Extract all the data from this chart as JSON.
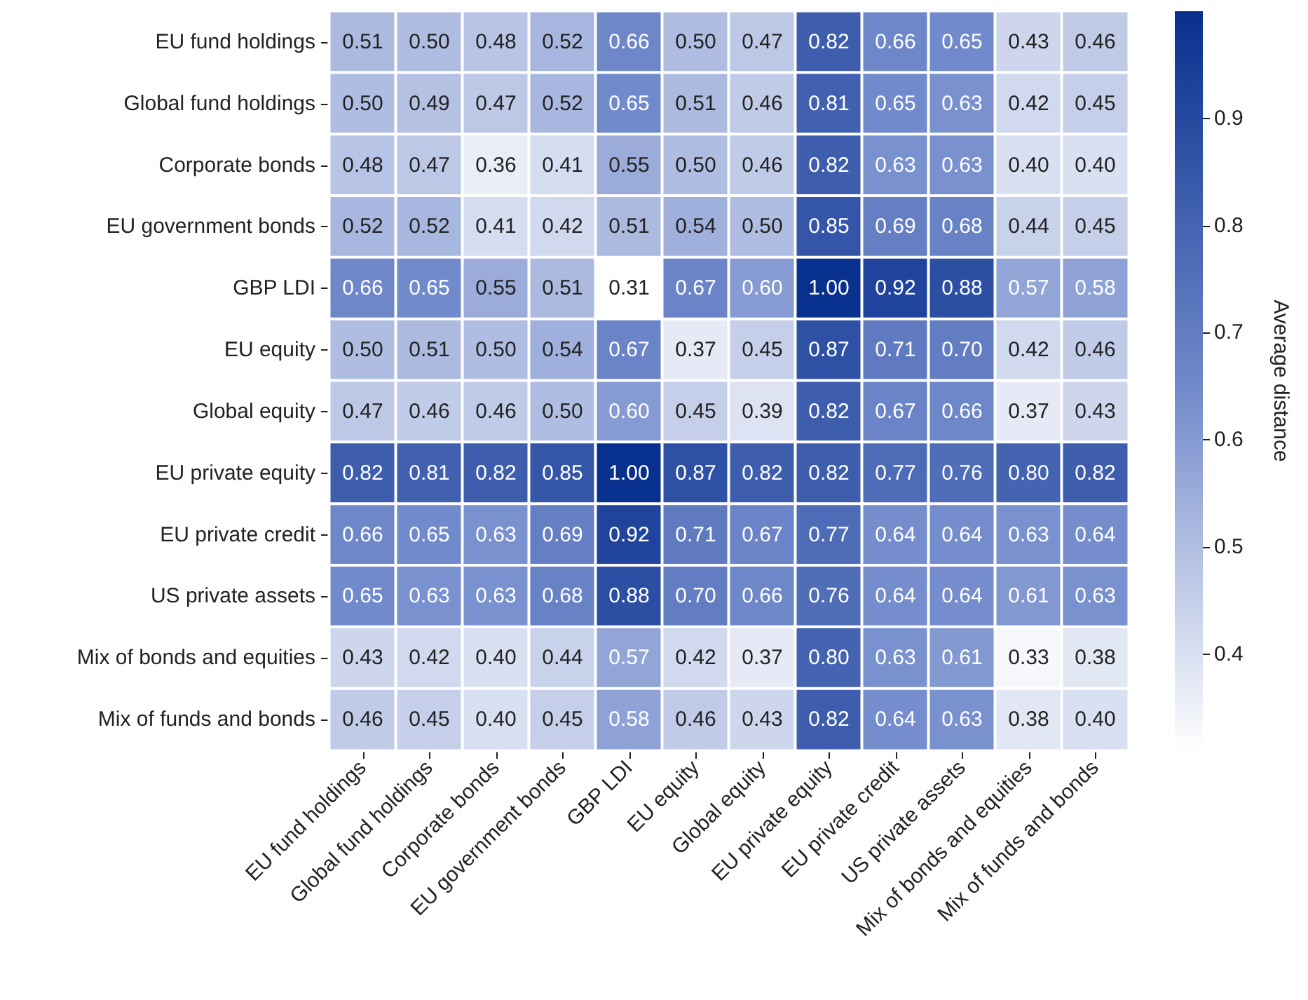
{
  "chart_data": {
    "type": "heatmap",
    "categories": [
      "EU fund holdings",
      "Global fund holdings",
      "Corporate bonds",
      "EU government bonds",
      "GBP LDI",
      "EU equity",
      "Global equity",
      "EU private equity",
      "EU private credit",
      "US private assets",
      "Mix of bonds and equities",
      "Mix of funds and bonds"
    ],
    "y_categories": [
      "EU fund holdings",
      "Global fund holdings",
      "Corporate bonds",
      "EU government bonds",
      "GBP LDI",
      "EU equity",
      "Global equity",
      "EU private equity",
      "EU private credit",
      "US private assets",
      "Mix of bonds and equities",
      "Mix of funds and bonds"
    ],
    "cells": [
      [
        0.51,
        0.5,
        0.48,
        0.52,
        0.66,
        0.5,
        0.47,
        0.82,
        0.66,
        0.65,
        0.43,
        0.46
      ],
      [
        0.5,
        0.49,
        0.47,
        0.52,
        0.65,
        0.51,
        0.46,
        0.81,
        0.65,
        0.63,
        0.42,
        0.45
      ],
      [
        0.48,
        0.47,
        0.36,
        0.41,
        0.55,
        0.5,
        0.46,
        0.82,
        0.63,
        0.63,
        0.4,
        0.4
      ],
      [
        0.52,
        0.52,
        0.41,
        0.42,
        0.51,
        0.54,
        0.5,
        0.85,
        0.69,
        0.68,
        0.44,
        0.45
      ],
      [
        0.66,
        0.65,
        0.55,
        0.51,
        0.31,
        0.67,
        0.6,
        1.0,
        0.92,
        0.88,
        0.57,
        0.58
      ],
      [
        0.5,
        0.51,
        0.5,
        0.54,
        0.67,
        0.37,
        0.45,
        0.87,
        0.71,
        0.7,
        0.42,
        0.46
      ],
      [
        0.47,
        0.46,
        0.46,
        0.5,
        0.6,
        0.45,
        0.39,
        0.82,
        0.67,
        0.66,
        0.37,
        0.43
      ],
      [
        0.82,
        0.81,
        0.82,
        0.85,
        1.0,
        0.87,
        0.82,
        0.82,
        0.77,
        0.76,
        0.8,
        0.82
      ],
      [
        0.66,
        0.65,
        0.63,
        0.69,
        0.92,
        0.71,
        0.67,
        0.77,
        0.64,
        0.64,
        0.63,
        0.64
      ],
      [
        0.65,
        0.63,
        0.63,
        0.68,
        0.88,
        0.7,
        0.66,
        0.76,
        0.64,
        0.64,
        0.61,
        0.63
      ],
      [
        0.43,
        0.42,
        0.4,
        0.44,
        0.57,
        0.42,
        0.37,
        0.8,
        0.63,
        0.61,
        0.33,
        0.38
      ],
      [
        0.46,
        0.45,
        0.4,
        0.45,
        0.58,
        0.46,
        0.43,
        0.82,
        0.64,
        0.63,
        0.38,
        0.4
      ]
    ],
    "cell_labels": [
      [
        "0.51",
        "0.50",
        "0.48",
        "0.52",
        "0.66",
        "0.50",
        "0.47",
        "0.82",
        "0.66",
        "0.65",
        "0.43",
        "0.46"
      ],
      [
        "0.50",
        "0.49",
        "0.47",
        "0.52",
        "0.65",
        "0.51",
        "0.46",
        "0.81",
        "0.65",
        "0.63",
        "0.42",
        "0.45"
      ],
      [
        "0.48",
        "0.47",
        "0.36",
        "0.41",
        "0.55",
        "0.50",
        "0.46",
        "0.82",
        "0.63",
        "0.63",
        "0.40",
        "0.40"
      ],
      [
        "0.52",
        "0.52",
        "0.41",
        "0.42",
        "0.51",
        "0.54",
        "0.50",
        "0.85",
        "0.69",
        "0.68",
        "0.44",
        "0.45"
      ],
      [
        "0.66",
        "0.65",
        "0.55",
        "0.51",
        "0.31",
        "0.67",
        "0.60",
        "1.00",
        "0.92",
        "0.88",
        "0.57",
        "0.58"
      ],
      [
        "0.50",
        "0.51",
        "0.50",
        "0.54",
        "0.67",
        "0.37",
        "0.45",
        "0.87",
        "0.71",
        "0.70",
        "0.42",
        "0.46"
      ],
      [
        "0.47",
        "0.46",
        "0.46",
        "0.50",
        "0.60",
        "0.45",
        "0.39",
        "0.82",
        "0.67",
        "0.66",
        "0.37",
        "0.43"
      ],
      [
        "0.82",
        "0.81",
        "0.82",
        "0.85",
        "1.00",
        "0.87",
        "0.82",
        "0.82",
        "0.77",
        "0.76",
        "0.80",
        "0.82"
      ],
      [
        "0.66",
        "0.65",
        "0.63",
        "0.69",
        "0.92",
        "0.71",
        "0.67",
        "0.77",
        "0.64",
        "0.64",
        "0.63",
        "0.64"
      ],
      [
        "0.65",
        "0.63",
        "0.63",
        "0.68",
        "0.88",
        "0.70",
        "0.66",
        "0.76",
        "0.64",
        "0.64",
        "0.61",
        "0.63"
      ],
      [
        "0.43",
        "0.42",
        "0.40",
        "0.44",
        "0.57",
        "0.42",
        "0.37",
        "0.80",
        "0.63",
        "0.61",
        "0.33",
        "0.38"
      ],
      [
        "0.46",
        "0.45",
        "0.40",
        "0.45",
        "0.58",
        "0.46",
        "0.43",
        "0.82",
        "0.64",
        "0.63",
        "0.38",
        "0.40"
      ]
    ],
    "clim": [
      0.31,
      1.0
    ],
    "cticks": [
      0.4,
      0.5,
      0.6,
      0.7,
      0.8,
      0.9
    ],
    "clabel": "Average distance",
    "data_labels": true
  }
}
